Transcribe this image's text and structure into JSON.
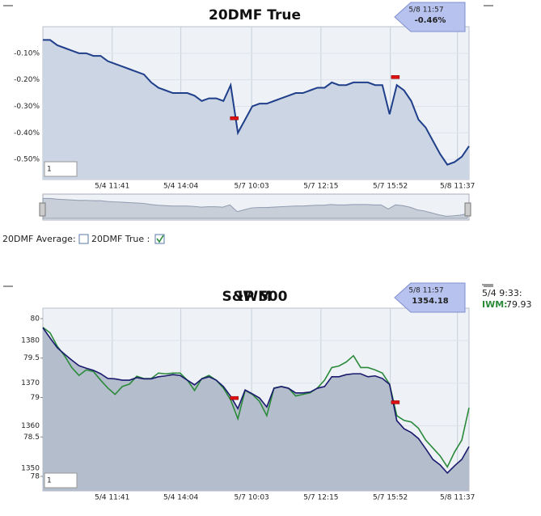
{
  "chart_data": [
    {
      "type": "area",
      "title": "20DMF True",
      "values": [
        -0.05,
        -0.05,
        -0.07,
        -0.08,
        -0.09,
        -0.1,
        -0.1,
        -0.11,
        -0.11,
        -0.13,
        -0.14,
        -0.15,
        -0.16,
        -0.17,
        -0.18,
        -0.21,
        -0.23,
        -0.24,
        -0.25,
        -0.25,
        -0.25,
        -0.26,
        -0.28,
        -0.27,
        -0.27,
        -0.28,
        -0.22,
        -0.4,
        -0.35,
        -0.3,
        -0.29,
        -0.29,
        -0.28,
        -0.27,
        -0.26,
        -0.25,
        -0.25,
        -0.24,
        -0.23,
        -0.23,
        -0.21,
        -0.22,
        -0.22,
        -0.21,
        -0.21,
        -0.21,
        -0.22,
        -0.22,
        -0.33,
        -0.22,
        -0.24,
        -0.28,
        -0.35,
        -0.38,
        -0.43,
        -0.48,
        -0.52,
        -0.51,
        -0.49,
        -0.45
      ],
      "color": "#1f3f8a",
      "fill": "#ccd5e3",
      "xlim": [
        0,
        59
      ],
      "xticks": [
        {
          "value": 9.6,
          "label": "5/4 11:41"
        },
        {
          "value": 19.1,
          "label": "5/4 14:04"
        },
        {
          "value": 28.9,
          "label": "5/7 10:03"
        },
        {
          "value": 38.5,
          "label": "5/7 12:15"
        },
        {
          "value": 48.1,
          "label": "5/7 15:52"
        },
        {
          "value": 57.4,
          "label": "5/8 11:37"
        }
      ],
      "ylim": [
        -0.576,
        0.0
      ],
      "yticks": [
        {
          "value": -0.1,
          "label": "-0.10%"
        },
        {
          "value": -0.2,
          "label": "-0.20%"
        },
        {
          "value": -0.3,
          "label": "-0.30%"
        },
        {
          "value": -0.4,
          "label": "-0.40%"
        },
        {
          "value": -0.5,
          "label": "-0.50%"
        }
      ],
      "markers": [
        {
          "x": 26.5,
          "y": -0.345
        },
        {
          "x": 48.8,
          "y": -0.19
        }
      ],
      "tooltip": {
        "time": "5/8 11:57",
        "value": "-0.46%"
      },
      "range_input": "1",
      "controls": {
        "average": "20DMF Average:",
        "true": "20DMF True :"
      }
    },
    {
      "type": "line",
      "series": [
        {
          "name": "S&P 500",
          "color": "#1a1a6e",
          "fill": "#b3bdcb",
          "axis": "y",
          "values": [
            1383,
            1380.6,
            1378.3,
            1376.8,
            1375.4,
            1374.1,
            1373.5,
            1373,
            1372.2,
            1371.1,
            1371,
            1370.7,
            1370.7,
            1371.3,
            1371,
            1371,
            1371.5,
            1371.7,
            1372,
            1371.8,
            1370.7,
            1369.6,
            1371,
            1371.5,
            1370.7,
            1369.2,
            1366.9,
            1364,
            1368.4,
            1367.5,
            1366.5,
            1364.4,
            1368.8,
            1369.2,
            1368.8,
            1367.7,
            1367.7,
            1367.9,
            1368.8,
            1369.2,
            1371.5,
            1371.5,
            1372,
            1372.2,
            1372.2,
            1371.5,
            1371.7,
            1371.1,
            1369.7,
            1361.2,
            1359.3,
            1358.4,
            1357,
            1354.6,
            1352.1,
            1350.8,
            1348.9,
            1350.6,
            1352.1,
            1355.1
          ]
        },
        {
          "name": "IWM",
          "color": "#2a8a3a",
          "axis": "y2",
          "values": [
            79.89,
            79.82,
            79.65,
            79.53,
            79.38,
            79.28,
            79.35,
            79.33,
            79.22,
            79.12,
            79.04,
            79.14,
            79.17,
            79.27,
            79.24,
            79.24,
            79.31,
            79.3,
            79.31,
            79.31,
            79.22,
            79.09,
            79.24,
            79.28,
            79.22,
            79.12,
            78.97,
            78.73,
            79.09,
            79.04,
            78.95,
            78.77,
            79.12,
            79.14,
            79.12,
            79.02,
            79.04,
            79.06,
            79.12,
            79.22,
            79.38,
            79.4,
            79.45,
            79.53,
            79.38,
            79.38,
            79.35,
            79.31,
            79.17,
            78.77,
            78.71,
            78.69,
            78.61,
            78.46,
            78.36,
            78.26,
            78.12,
            78.31,
            78.46,
            78.87
          ]
        }
      ],
      "xlim": [
        0,
        59
      ],
      "xticks": [
        {
          "value": 9.6,
          "label": "5/4 11:41"
        },
        {
          "value": 19.1,
          "label": "5/4 14:04"
        },
        {
          "value": 28.9,
          "label": "5/7 10:03"
        },
        {
          "value": 38.5,
          "label": "5/7 12:15"
        },
        {
          "value": 48.1,
          "label": "5/7 15:52"
        },
        {
          "value": 57.4,
          "label": "5/8 11:37"
        }
      ],
      "ylim": [
        1344.7,
        1387.6
      ],
      "yticks": [
        1350,
        1360,
        1370,
        1380
      ],
      "y2lim": [
        77.816,
        80.133
      ],
      "y2ticks": [
        78,
        78.5,
        79,
        79.5,
        80
      ],
      "markers": [
        {
          "x": 26.5,
          "y": 1366.5
        },
        {
          "x": 48.8,
          "y": 1365.5
        }
      ],
      "tooltip": {
        "time": "5/8 11:57",
        "value": "1354.18"
      },
      "range_input": "1",
      "legend_panel": {
        "time": "5/4 9:33:",
        "label": "IWM:",
        "value": "79.93"
      }
    }
  ]
}
